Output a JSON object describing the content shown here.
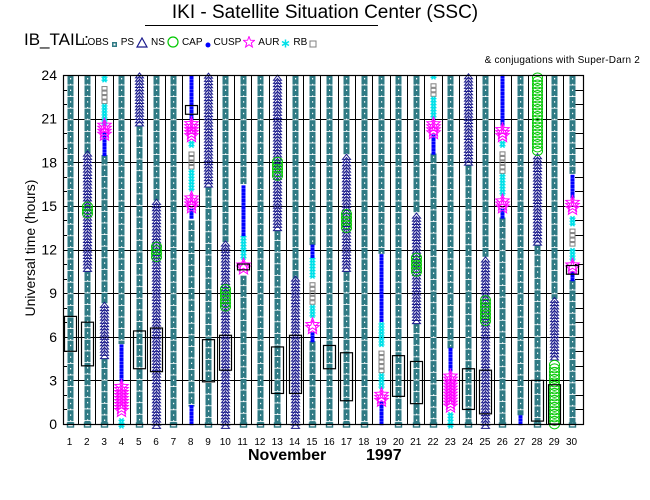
{
  "header": {
    "title": "IKI - Satellite Situation Center (SSC)",
    "dataset": "IB_TAIL:",
    "conjugations": "& conjugations with Super-Darn 2"
  },
  "legend": [
    {
      "label": "LOBS",
      "symbol": "square-filled",
      "color": "#2f7a84"
    },
    {
      "label": "PS",
      "symbol": "triangle",
      "color": "#1a1a8c"
    },
    {
      "label": "NS",
      "symbol": "circle",
      "color": "#00c800"
    },
    {
      "label": "CAP",
      "symbol": "dot",
      "color": "#0000ff"
    },
    {
      "label": "CUSP",
      "symbol": "star",
      "color": "#ff00ff"
    },
    {
      "label": "AUR",
      "symbol": "asterisk",
      "color": "#00e0e8"
    },
    {
      "label": "RB",
      "symbol": "square-open",
      "color": "#808080"
    }
  ],
  "colors": {
    "lobs": "#2f7a84",
    "ps": "#1a1a8c",
    "ns": "#00c800",
    "cap": "#0000ff",
    "cusp": "#ff00ff",
    "aur": "#00e0e8",
    "rb": "#808080",
    "superdarn": "#000000"
  },
  "chart_data": {
    "type": "timeline",
    "title": "IKI - Satellite Situation Center (SSC)",
    "xlabel_month": "November",
    "xlabel_year": "1997",
    "ylabel": "Universal time (hours)",
    "x_ticks": [
      "1",
      "2",
      "3",
      "4",
      "5",
      "6",
      "7",
      "8",
      "9",
      "10",
      "11",
      "12",
      "13",
      "14",
      "15",
      "16",
      "17",
      "18",
      "19",
      "20",
      "21",
      "22",
      "23",
      "24",
      "25",
      "26",
      "27",
      "28",
      "29",
      "30"
    ],
    "y_ticks": [
      "0",
      "3",
      "6",
      "9",
      "12",
      "15",
      "18",
      "21",
      "24"
    ],
    "ylim": [
      0,
      24
    ],
    "xlim": [
      1,
      30
    ],
    "grid": true,
    "segments": [
      {
        "day": 1,
        "region": "LOBS",
        "start": 0,
        "end": 24
      },
      {
        "day": 2,
        "region": "LOBS",
        "start": 0,
        "end": 10.5
      },
      {
        "day": 2,
        "region": "PS",
        "start": 10.5,
        "end": 18.6
      },
      {
        "day": 2,
        "region": "NS",
        "start": 14.2,
        "end": 15.2
      },
      {
        "day": 2,
        "region": "LOBS",
        "start": 18.6,
        "end": 24
      },
      {
        "day": 3,
        "region": "PS",
        "start": 4.5,
        "end": 8.3
      },
      {
        "day": 3,
        "region": "LOBS",
        "start": 0,
        "end": 4.5
      },
      {
        "day": 3,
        "region": "LOBS",
        "start": 8.3,
        "end": 18.5
      },
      {
        "day": 3,
        "region": "CAP",
        "start": 18.5,
        "end": 20
      },
      {
        "day": 3,
        "region": "CUSP",
        "start": 19.5,
        "end": 21
      },
      {
        "day": 3,
        "region": "AUR",
        "start": 20.5,
        "end": 22
      },
      {
        "day": 3,
        "region": "RB",
        "start": 22,
        "end": 23.5
      },
      {
        "day": 3,
        "region": "AUR",
        "start": 23.5,
        "end": 24
      },
      {
        "day": 4,
        "region": "AUR",
        "start": -0.3,
        "end": 0.5
      },
      {
        "day": 4,
        "region": "CUSP",
        "start": 0.5,
        "end": 3
      },
      {
        "day": 4,
        "region": "CAP",
        "start": 3,
        "end": 5.5
      },
      {
        "day": 4,
        "region": "LOBS",
        "start": 5.5,
        "end": 24
      },
      {
        "day": 5,
        "region": "LOBS",
        "start": 0,
        "end": 20.5
      },
      {
        "day": 5,
        "region": "PS",
        "start": 20.5,
        "end": 24
      },
      {
        "day": 6,
        "region": "PS",
        "start": -0.3,
        "end": 15.3
      },
      {
        "day": 6,
        "region": "NS",
        "start": 11.2,
        "end": 12.4
      },
      {
        "day": 6,
        "region": "LOBS",
        "start": 15.3,
        "end": 24
      },
      {
        "day": 7,
        "region": "LOBS",
        "start": 0,
        "end": 24
      },
      {
        "day": 8,
        "region": "CAP",
        "start": 0,
        "end": 1.2
      },
      {
        "day": 8,
        "region": "LOBS",
        "start": 1.2,
        "end": 14
      },
      {
        "day": 8,
        "region": "CAP",
        "start": 14.2,
        "end": 14.8
      },
      {
        "day": 8,
        "region": "CUSP",
        "start": 14.5,
        "end": 16
      },
      {
        "day": 8,
        "region": "AUR",
        "start": 16,
        "end": 17.5
      },
      {
        "day": 8,
        "region": "RB",
        "start": 17.5,
        "end": 19
      },
      {
        "day": 8,
        "region": "AUR",
        "start": 19,
        "end": 19.6
      },
      {
        "day": 8,
        "region": "CUSP",
        "start": 19.4,
        "end": 21
      },
      {
        "day": 8,
        "region": "CAP",
        "start": 21,
        "end": 24
      },
      {
        "day": 9,
        "region": "PS",
        "start": 16.3,
        "end": 24
      },
      {
        "day": 9,
        "region": "LOBS",
        "start": 0,
        "end": 16.3
      },
      {
        "day": 10,
        "region": "PS",
        "start": -0.3,
        "end": 12.5
      },
      {
        "day": 10,
        "region": "NS",
        "start": 7.8,
        "end": 9.6
      },
      {
        "day": 10,
        "region": "LOBS",
        "start": 12.5,
        "end": 24
      },
      {
        "day": 11,
        "region": "LOBS",
        "start": 0,
        "end": 10.2
      },
      {
        "day": 11,
        "region": "CUSP",
        "start": 10.3,
        "end": 11.3
      },
      {
        "day": 11,
        "region": "AUR",
        "start": 11.3,
        "end": 13
      },
      {
        "day": 11,
        "region": "CAP",
        "start": 13,
        "end": 16.5
      },
      {
        "day": 11,
        "region": "LOBS",
        "start": 16.5,
        "end": 24
      },
      {
        "day": 12,
        "region": "LOBS",
        "start": 0,
        "end": 24
      },
      {
        "day": 13,
        "region": "LOBS",
        "start": 0,
        "end": 13.3
      },
      {
        "day": 13,
        "region": "PS",
        "start": 13.3,
        "end": 24
      },
      {
        "day": 13,
        "region": "NS",
        "start": 16.8,
        "end": 18.4
      },
      {
        "day": 14,
        "region": "PS",
        "start": -0.3,
        "end": 10
      },
      {
        "day": 14,
        "region": "LOBS",
        "start": 10,
        "end": 24
      },
      {
        "day": 15,
        "region": "LOBS",
        "start": 0,
        "end": 5.7
      },
      {
        "day": 15,
        "region": "CAP",
        "start": 5.7,
        "end": 6.2
      },
      {
        "day": 15,
        "region": "CUSP",
        "start": 6.2,
        "end": 7.3
      },
      {
        "day": 15,
        "region": "AUR",
        "start": 7.3,
        "end": 8.2
      },
      {
        "day": 15,
        "region": "RB",
        "start": 8.2,
        "end": 10
      },
      {
        "day": 15,
        "region": "AUR",
        "start": 10,
        "end": 11.5
      },
      {
        "day": 15,
        "region": "CAP",
        "start": 11.5,
        "end": 12.3
      },
      {
        "day": 15,
        "region": "LOBS",
        "start": 12.3,
        "end": 24
      },
      {
        "day": 16,
        "region": "LOBS",
        "start": 0,
        "end": 24
      },
      {
        "day": 17,
        "region": "LOBS",
        "start": 0,
        "end": 10.5
      },
      {
        "day": 17,
        "region": "PS",
        "start": 10.5,
        "end": 18.5
      },
      {
        "day": 17,
        "region": "NS",
        "start": 13.2,
        "end": 14.7
      },
      {
        "day": 17,
        "region": "LOBS",
        "start": 18.5,
        "end": 24
      },
      {
        "day": 18,
        "region": "LOBS",
        "start": 0,
        "end": 24
      },
      {
        "day": 19,
        "region": "CAP",
        "start": 0,
        "end": 1.5
      },
      {
        "day": 19,
        "region": "CUSP",
        "start": 1.2,
        "end": 2.4
      },
      {
        "day": 19,
        "region": "AUR",
        "start": 2.4,
        "end": 3.5
      },
      {
        "day": 19,
        "region": "RB",
        "start": 3.5,
        "end": 5.3
      },
      {
        "day": 19,
        "region": "AUR",
        "start": 5.3,
        "end": 7.1
      },
      {
        "day": 19,
        "region": "CAP",
        "start": 7.1,
        "end": 11.7
      },
      {
        "day": 19,
        "region": "LOBS",
        "start": 11.7,
        "end": 24
      },
      {
        "day": 20,
        "region": "LOBS",
        "start": 0,
        "end": 24
      },
      {
        "day": 21,
        "region": "LOBS",
        "start": 0,
        "end": 6.9
      },
      {
        "day": 21,
        "region": "PS",
        "start": 6.9,
        "end": 14.5
      },
      {
        "day": 21,
        "region": "NS",
        "start": 10.2,
        "end": 11.8
      },
      {
        "day": 21,
        "region": "LOBS",
        "start": 14.5,
        "end": 24
      },
      {
        "day": 22,
        "region": "LOBS",
        "start": 0,
        "end": 18.6
      },
      {
        "day": 22,
        "region": "CAP",
        "start": 18.6,
        "end": 19.8
      },
      {
        "day": 22,
        "region": "CUSP",
        "start": 19.6,
        "end": 21
      },
      {
        "day": 22,
        "region": "AUR",
        "start": 21,
        "end": 22.5
      },
      {
        "day": 22,
        "region": "RB",
        "start": 22.5,
        "end": 23.7
      },
      {
        "day": 22,
        "region": "AUR",
        "start": 23.7,
        "end": 24
      },
      {
        "day": 23,
        "region": "AUR",
        "start": -0.3,
        "end": 0.8
      },
      {
        "day": 23,
        "region": "CUSP",
        "start": 0.8,
        "end": 3.7
      },
      {
        "day": 23,
        "region": "CAP",
        "start": 3.7,
        "end": 5.2
      },
      {
        "day": 23,
        "region": "LOBS",
        "start": 5.2,
        "end": 24
      },
      {
        "day": 24,
        "region": "LOBS",
        "start": 0,
        "end": 17.8
      },
      {
        "day": 24,
        "region": "PS",
        "start": 17.8,
        "end": 24
      },
      {
        "day": 25,
        "region": "PS",
        "start": -0.3,
        "end": 11.5
      },
      {
        "day": 25,
        "region": "NS",
        "start": 6.8,
        "end": 8.7
      },
      {
        "day": 25,
        "region": "LOBS",
        "start": 11.5,
        "end": 24
      },
      {
        "day": 26,
        "region": "LOBS",
        "start": 0,
        "end": 14.2
      },
      {
        "day": 26,
        "region": "CAP",
        "start": 14.2,
        "end": 14.8
      },
      {
        "day": 26,
        "region": "CUSP",
        "start": 14.5,
        "end": 15.7
      },
      {
        "day": 26,
        "region": "AUR",
        "start": 15.7,
        "end": 17.2
      },
      {
        "day": 26,
        "region": "RB",
        "start": 17.2,
        "end": 19
      },
      {
        "day": 26,
        "region": "AUR",
        "start": 19,
        "end": 19.6
      },
      {
        "day": 26,
        "region": "CUSP",
        "start": 19.4,
        "end": 20.6
      },
      {
        "day": 26,
        "region": "CAP",
        "start": 20.6,
        "end": 24
      },
      {
        "day": 27,
        "region": "CAP",
        "start": 0,
        "end": 0.6
      },
      {
        "day": 27,
        "region": "LOBS",
        "start": 0.6,
        "end": 24
      },
      {
        "day": 28,
        "region": "LOBS",
        "start": 0,
        "end": 12.3
      },
      {
        "day": 28,
        "region": "PS",
        "start": 12.3,
        "end": 18.5
      },
      {
        "day": 28,
        "region": "NS",
        "start": 18.5,
        "end": 24
      },
      {
        "day": 29,
        "region": "NS",
        "start": -0.3,
        "end": 4.4
      },
      {
        "day": 29,
        "region": "PS",
        "start": 4.4,
        "end": 8.6
      },
      {
        "day": 29,
        "region": "LOBS",
        "start": 8.6,
        "end": 24
      },
      {
        "day": 30,
        "region": "LOBS",
        "start": 0,
        "end": 9.9
      },
      {
        "day": 30,
        "region": "CAP",
        "start": 9.9,
        "end": 10.4
      },
      {
        "day": 30,
        "region": "CUSP",
        "start": 10.3,
        "end": 11.2
      },
      {
        "day": 30,
        "region": "AUR",
        "start": 11.2,
        "end": 12.2
      },
      {
        "day": 30,
        "region": "RB",
        "start": 12.2,
        "end": 13.6
      },
      {
        "day": 30,
        "region": "AUR",
        "start": 13.6,
        "end": 14.4
      },
      {
        "day": 30,
        "region": "CUSP",
        "start": 14.4,
        "end": 15.6
      },
      {
        "day": 30,
        "region": "CAP",
        "start": 15.6,
        "end": 17.2
      },
      {
        "day": 30,
        "region": "LOBS",
        "start": 17.2,
        "end": 24
      }
    ],
    "superdarn_conjugations": [
      {
        "day": 1,
        "start": 5.0,
        "end": 7.4
      },
      {
        "day": 2,
        "start": 4.0,
        "end": 7.0
      },
      {
        "day": 5,
        "start": 3.8,
        "end": 6.4
      },
      {
        "day": 6,
        "start": 3.6,
        "end": 6.6
      },
      {
        "day": 8,
        "start": 21.3,
        "end": 21.9
      },
      {
        "day": 9,
        "start": 2.9,
        "end": 5.8
      },
      {
        "day": 10,
        "start": 3.7,
        "end": 6.1
      },
      {
        "day": 11,
        "start": 10.6,
        "end": 11.0
      },
      {
        "day": 13,
        "start": 2.1,
        "end": 5.3
      },
      {
        "day": 14,
        "start": 2.1,
        "end": 6.1
      },
      {
        "day": 16,
        "start": 3.8,
        "end": 5.4
      },
      {
        "day": 17,
        "start": 1.6,
        "end": 4.9
      },
      {
        "day": 20,
        "start": 1.9,
        "end": 4.7
      },
      {
        "day": 21,
        "start": 1.4,
        "end": 4.3
      },
      {
        "day": 24,
        "start": 1.0,
        "end": 3.8
      },
      {
        "day": 25,
        "start": 0.7,
        "end": 3.7
      },
      {
        "day": 28,
        "start": 0.2,
        "end": 3.0
      },
      {
        "day": 29,
        "start": 0.0,
        "end": 2.7
      },
      {
        "day": 30,
        "start": 10.3,
        "end": 10.9
      }
    ]
  }
}
